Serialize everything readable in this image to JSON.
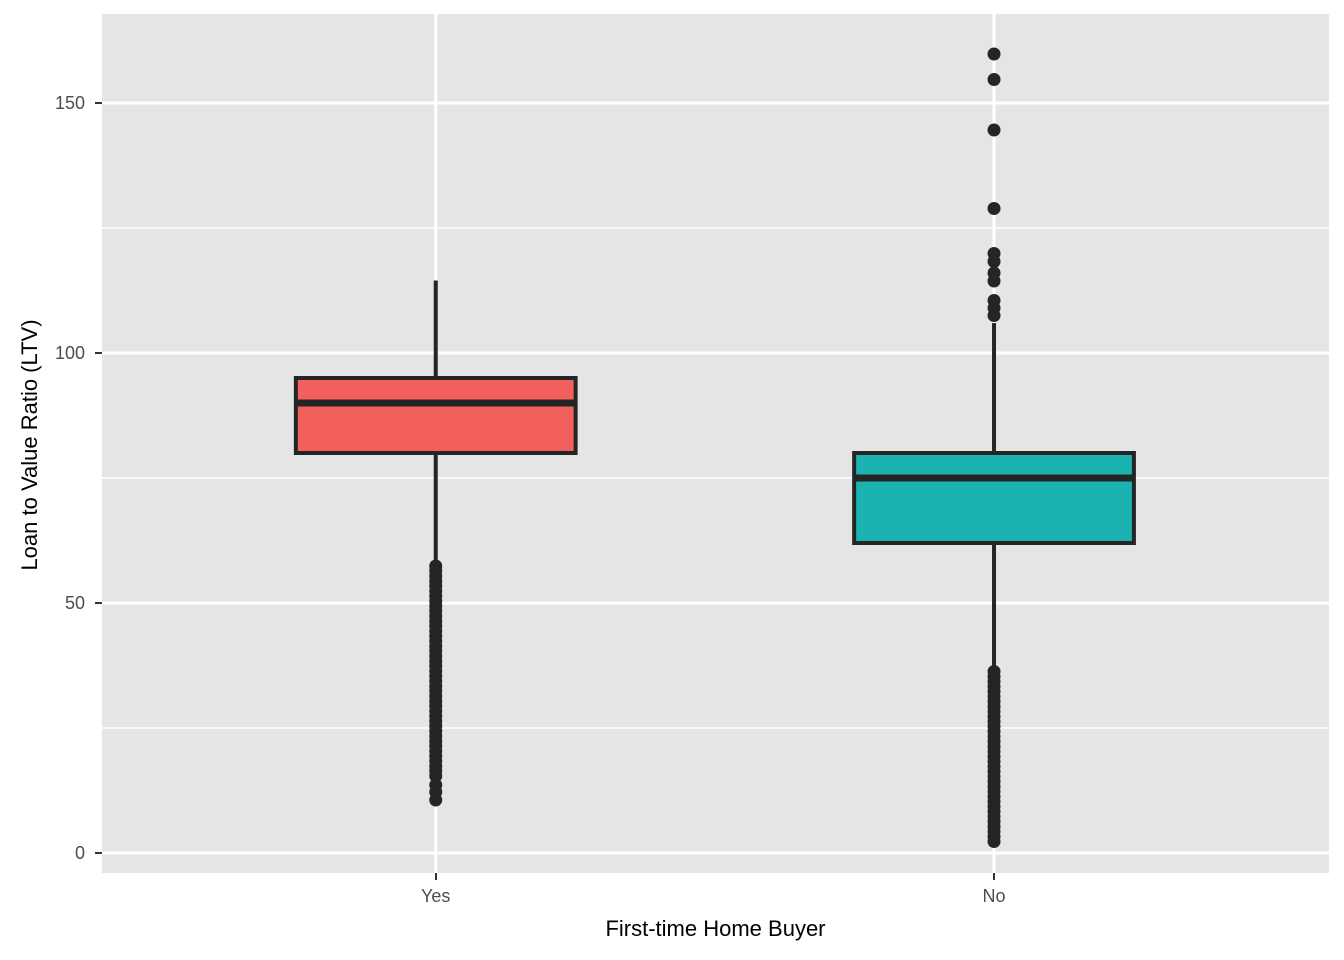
{
  "figure": {
    "background": "#FFFFFF",
    "panel_background": "#E5E5E5",
    "grid_color": "#FFFFFF",
    "stroke_color": "#252525",
    "tick_mark_color": "#333333",
    "tick_label_color": "#4D4D4D",
    "axis_title_color": "#000000"
  },
  "chart_data": {
    "type": "boxplot",
    "title": "",
    "xlabel": "First-time Home Buyer",
    "ylabel": "Loan to Value Ratio (LTV)",
    "categories": [
      "Yes",
      "No"
    ],
    "y_ticks": [
      0,
      50,
      100,
      150
    ],
    "y_minor_ticks": [
      25,
      75,
      125
    ],
    "ylim": [
      -4,
      167.8
    ],
    "grid": true,
    "legend": "none",
    "box_width_frac": 0.228,
    "series": [
      {
        "name": "Yes",
        "fill": "#F2605D",
        "x_frac": 0.272,
        "q1": 80,
        "median": 90,
        "q3": 95,
        "whisker_low": 58,
        "whisker_high": 114.5,
        "outliers": [
          57.4,
          56.4,
          55.4,
          54.4,
          53.4,
          52.4,
          51.4,
          50.4,
          49.4,
          48.4,
          47.4,
          46.4,
          45.4,
          44.4,
          43.4,
          42.4,
          41.4,
          40.4,
          39.4,
          38.4,
          37.4,
          36.4,
          35.4,
          34.4,
          33.4,
          32.4,
          31.4,
          30.4,
          29.4,
          28.4,
          27.4,
          26.4,
          25.4,
          24.4,
          23.4,
          22.4,
          21.4,
          20.4,
          19.4,
          18.4,
          17.4,
          16.4,
          15.4,
          13.6,
          12.2,
          10.6
        ]
      },
      {
        "name": "No",
        "fill": "#1AB3B2",
        "x_frac": 0.727,
        "q1": 62,
        "median": 75,
        "q3": 80,
        "whisker_low": 37,
        "whisker_high": 106,
        "outliers": [
          159.8,
          154.7,
          144.6,
          128.9,
          119.9,
          118.3,
          116.0,
          114.4,
          110.5,
          109.0,
          107.5,
          36.3,
          35.3,
          34.3,
          33.3,
          32.3,
          31.3,
          30.3,
          29.3,
          28.3,
          27.3,
          26.3,
          25.3,
          24.3,
          23.3,
          22.3,
          21.3,
          20.3,
          19.3,
          18.3,
          17.3,
          16.3,
          15.3,
          14.3,
          13.3,
          12.3,
          11.3,
          10.3,
          9.3,
          8.3,
          7.3,
          6.3,
          5.3,
          4.3,
          3.3,
          2.3
        ]
      }
    ]
  }
}
